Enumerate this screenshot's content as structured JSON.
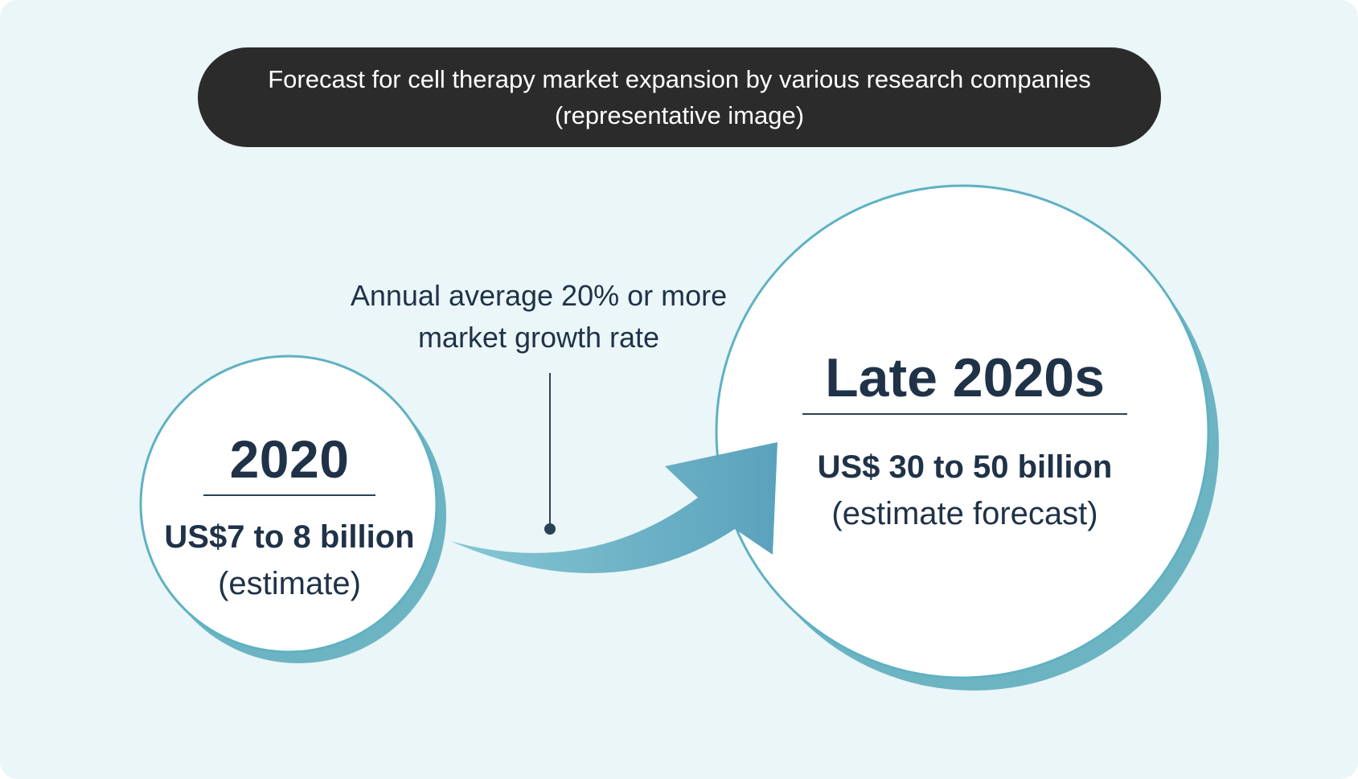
{
  "title": {
    "line1": "Forecast for cell therapy market expansion by various research companies",
    "line2": "(representative image)"
  },
  "growth_label": {
    "line1": "Annual average 20% or more",
    "line2": "market growth rate"
  },
  "current": {
    "year": "2020",
    "value": "US$7 to 8 billion",
    "note": "(estimate)"
  },
  "forecast": {
    "year": "Late 2020s",
    "value": "US$ 30 to 50 billion",
    "note": "(estimate forecast)"
  },
  "colors": {
    "background": "#eaf6f8",
    "title_pill": "#2b2b2b",
    "circle_border": "#5fb1c2",
    "circle_shadow": "#6db4c3",
    "arrow_start": "#84c5d2",
    "arrow_end": "#5aa3bd",
    "text_dark": "#1f3248"
  }
}
